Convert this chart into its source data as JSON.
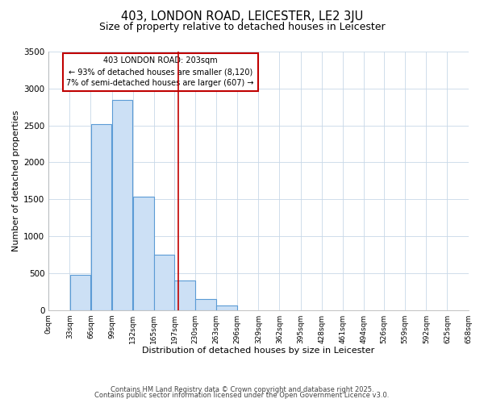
{
  "title": "403, LONDON ROAD, LEICESTER, LE2 3JU",
  "subtitle": "Size of property relative to detached houses in Leicester",
  "xlabel": "Distribution of detached houses by size in Leicester",
  "ylabel": "Number of detached properties",
  "footnote1": "Contains HM Land Registry data © Crown copyright and database right 2025.",
  "footnote2": "Contains public sector information licensed under the Open Government Licence v3.0.",
  "annotation_line1": "403 LONDON ROAD: 203sqm",
  "annotation_line2": "← 93% of detached houses are smaller (8,120)",
  "annotation_line3": "7% of semi-detached houses are larger (607) →",
  "bar_edges": [
    0,
    33,
    66,
    99,
    132,
    165,
    197,
    230,
    263,
    296,
    329,
    362,
    395,
    428,
    461,
    494,
    526,
    559,
    592,
    625,
    658
  ],
  "bar_heights": [
    0,
    480,
    2520,
    2840,
    1540,
    750,
    400,
    150,
    65,
    0,
    0,
    0,
    0,
    0,
    0,
    0,
    0,
    0,
    0,
    0
  ],
  "property_size": 203,
  "bar_color": "#cce0f5",
  "bar_edge_color": "#5b9bd5",
  "vline_color": "#c00000",
  "annotation_box_edge_color": "#c00000",
  "background_color": "#ffffff",
  "grid_color": "#c8d8e8",
  "ylim": [
    0,
    3500
  ],
  "xlim": [
    0,
    658
  ],
  "yticks": [
    0,
    500,
    1000,
    1500,
    2000,
    2500,
    3000,
    3500
  ]
}
